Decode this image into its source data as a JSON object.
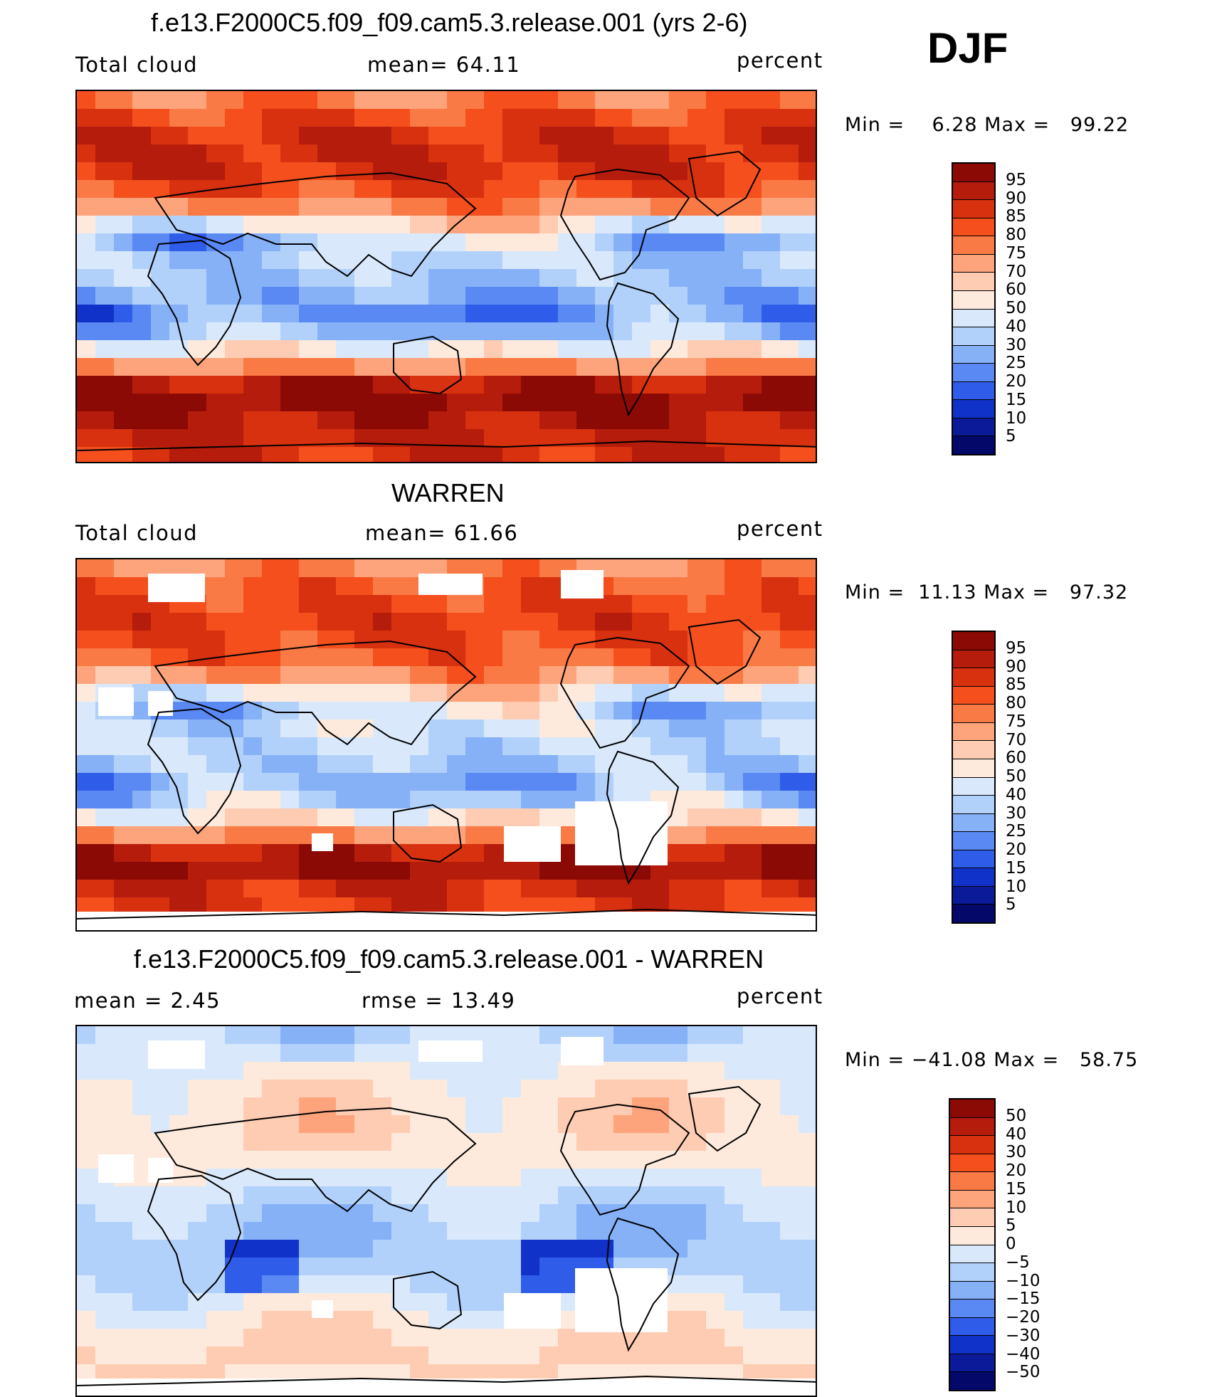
{
  "season": "DJF",
  "panels": [
    {
      "title": "f.e13.F2000C5.f09_f09.cam5.3.release.001 (yrs 2-6)",
      "left_label": "Total cloud",
      "center_label": "mean=   64.11",
      "units": "percent",
      "minmax": "Min =    6.28 Max =   99.22",
      "colorbar_ticks": [
        "95",
        "90",
        "85",
        "80",
        "75",
        "70",
        "60",
        "50",
        "40",
        "30",
        "25",
        "20",
        "15",
        "10",
        "5"
      ]
    },
    {
      "title": "WARREN",
      "left_label": "Total cloud",
      "center_label": "mean=   61.66",
      "units": "percent",
      "minmax": "Min =  11.13 Max =   97.32",
      "colorbar_ticks": [
        "95",
        "90",
        "85",
        "80",
        "75",
        "70",
        "60",
        "50",
        "40",
        "30",
        "25",
        "20",
        "15",
        "10",
        "5"
      ]
    },
    {
      "title": "f.e13.F2000C5.f09_f09.cam5.3.release.001 - WARREN",
      "left_label": "mean =    2.45",
      "center_label": "rmse =   13.49",
      "units": "percent",
      "minmax": "Min = −41.08 Max =   58.75",
      "colorbar_ticks": [
        "50",
        "40",
        "30",
        "20",
        "15",
        "10",
        "5",
        "0",
        "−5",
        "−10",
        "−15",
        "−20",
        "−30",
        "−40",
        "−50"
      ]
    }
  ],
  "colors": {
    "abs_scale": [
      "#8b0a06",
      "#b51c0c",
      "#d8310f",
      "#f44f1c",
      "#fa7a45",
      "#fda47d",
      "#fdccb2",
      "#fdeadc",
      "#d9e9fb",
      "#b2d1fa",
      "#86b1f7",
      "#5a89f4",
      "#2f5de9",
      "#1132c8",
      "#0a1a98",
      "#040868"
    ],
    "diff_scale": [
      "#8b0a06",
      "#b51c0c",
      "#d8310f",
      "#f44f1c",
      "#fa7a45",
      "#fda47d",
      "#fdccb2",
      "#fdeadc",
      "#d9e9fb",
      "#b2d1fa",
      "#86b1f7",
      "#5a89f4",
      "#2f5de9",
      "#1132c8",
      "#0a1a98",
      "#040868"
    ]
  }
}
